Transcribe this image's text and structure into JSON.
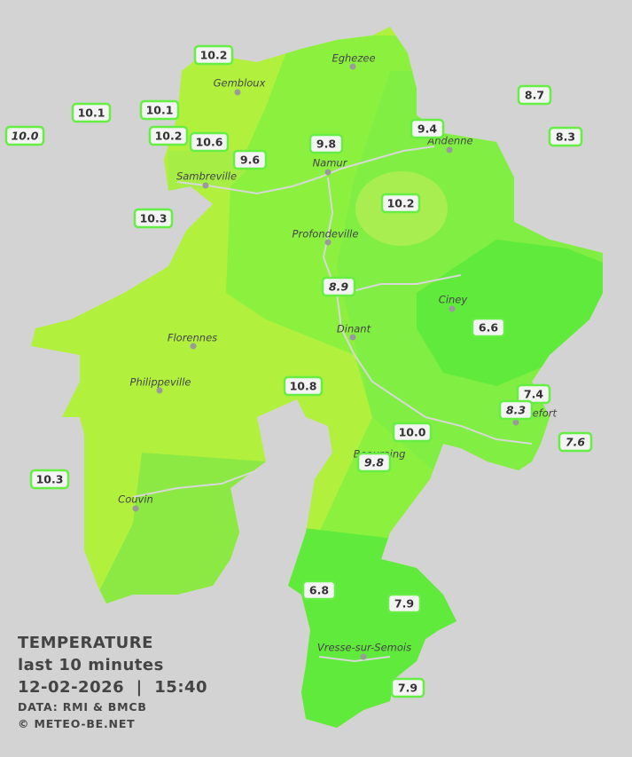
{
  "map": {
    "towns": [
      "Eghezee",
      "Gembloux",
      "Andenne",
      "Namur",
      "Sambreville",
      "Profondeville",
      "Ciney",
      "Dinant",
      "Florennes",
      "Philippeville",
      "Rochefort",
      "Beauraing",
      "Couvin",
      "Vresse-sur-Semois"
    ],
    "stations": [
      {
        "label": "10.2"
      },
      {
        "label": "8.7"
      },
      {
        "label": "10.1"
      },
      {
        "label": "10.1"
      },
      {
        "label": "9.4"
      },
      {
        "label": "10.0",
        "italic": true
      },
      {
        "label": "10.2"
      },
      {
        "label": "10.6"
      },
      {
        "label": "9.8"
      },
      {
        "label": "8.3"
      },
      {
        "label": "9.6"
      },
      {
        "label": "10.3"
      },
      {
        "label": "10.2"
      },
      {
        "label": "8.9",
        "italic": true
      },
      {
        "label": "6.6"
      },
      {
        "label": "10.8"
      },
      {
        "label": "7.4"
      },
      {
        "label": "8.3",
        "italic": true
      },
      {
        "label": "10.0"
      },
      {
        "label": "7.6",
        "italic": true
      },
      {
        "label": "9.8",
        "italic": true
      },
      {
        "label": "10.3"
      },
      {
        "label": "6.8"
      },
      {
        "label": "7.9"
      },
      {
        "label": "7.9"
      }
    ],
    "legend": {
      "title": "TEMPERATURE",
      "period": "last 10 minutes",
      "datetime": "12-02-2026  |  15:40",
      "source": "DATA: RMI & BMCB",
      "copyright": "© METEO-BE.NET"
    }
  }
}
